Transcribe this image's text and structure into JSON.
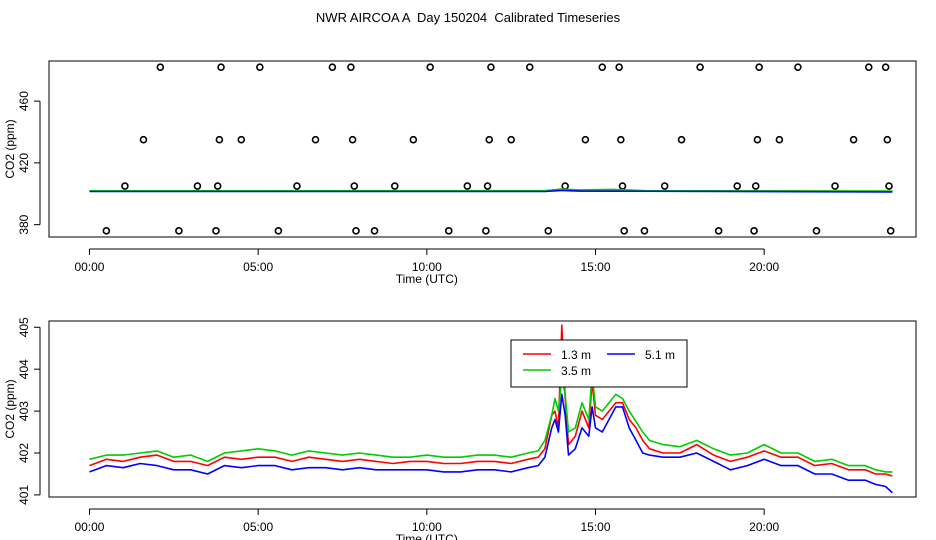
{
  "title": "NWR AIRCOA A  Day 150204  Calibrated Timeseries",
  "colors": {
    "red": "#ff0000",
    "green": "#00cc00",
    "blue": "#0000ff",
    "black": "#000000"
  },
  "chart_data": [
    {
      "type": "line",
      "title": "",
      "xlabel": "Time (UTC)",
      "ylabel": "CO2 (ppm)",
      "xlim": [
        -1.2,
        24.5
      ],
      "ylim": [
        372,
        486
      ],
      "x_ticks": [
        0,
        5,
        10,
        15,
        20
      ],
      "x_tick_labels": [
        "00:00",
        "05:00",
        "10:00",
        "15:00",
        "20:00"
      ],
      "y_ticks": [
        380,
        420,
        460
      ],
      "y_tick_labels": [
        "380",
        "420",
        "460"
      ],
      "grid": false,
      "series": [
        {
          "color": "red",
          "x": [
            0,
            13.5,
            14.0,
            14.5,
            23.8
          ],
          "y": [
            401.7,
            401.7,
            402.5,
            401.9,
            401.6
          ]
        },
        {
          "color": "green",
          "x": [
            0,
            13.5,
            14.0,
            14.5,
            15.5,
            16.5,
            23.8
          ],
          "y": [
            401.9,
            402.0,
            403.0,
            402.5,
            402.8,
            402.0,
            401.7
          ]
        },
        {
          "color": "blue",
          "x": [
            0,
            13.5,
            14.0,
            14.5,
            23.8
          ],
          "y": [
            401.5,
            401.5,
            402.2,
            401.7,
            401.2
          ]
        }
      ],
      "scatter": {
        "marker": "open-circle",
        "points": [
          [
            0.5,
            376
          ],
          [
            1.05,
            405
          ],
          [
            1.6,
            435
          ],
          [
            2.1,
            482
          ],
          [
            2.65,
            376
          ],
          [
            3.2,
            405
          ],
          [
            3.75,
            376
          ],
          [
            3.8,
            405
          ],
          [
            3.85,
            435
          ],
          [
            3.9,
            482
          ],
          [
            4.5,
            435
          ],
          [
            5.05,
            482
          ],
          [
            5.6,
            376
          ],
          [
            6.15,
            405
          ],
          [
            6.7,
            435
          ],
          [
            7.2,
            482
          ],
          [
            7.75,
            482
          ],
          [
            7.8,
            435
          ],
          [
            7.85,
            405
          ],
          [
            7.9,
            376
          ],
          [
            8.45,
            376
          ],
          [
            9.05,
            405
          ],
          [
            9.6,
            435
          ],
          [
            10.1,
            482
          ],
          [
            10.65,
            376
          ],
          [
            11.2,
            405
          ],
          [
            11.75,
            376
          ],
          [
            11.8,
            405
          ],
          [
            11.85,
            435
          ],
          [
            11.9,
            482
          ],
          [
            12.5,
            435
          ],
          [
            13.05,
            482
          ],
          [
            13.6,
            376
          ],
          [
            14.1,
            405
          ],
          [
            14.7,
            435
          ],
          [
            15.2,
            482
          ],
          [
            15.7,
            482
          ],
          [
            15.75,
            435
          ],
          [
            15.8,
            405
          ],
          [
            15.85,
            376
          ],
          [
            16.45,
            376
          ],
          [
            17.05,
            405
          ],
          [
            17.55,
            435
          ],
          [
            18.1,
            482
          ],
          [
            18.65,
            376
          ],
          [
            19.2,
            405
          ],
          [
            19.7,
            376
          ],
          [
            19.75,
            405
          ],
          [
            19.8,
            435
          ],
          [
            19.85,
            482
          ],
          [
            20.45,
            435
          ],
          [
            21.0,
            482
          ],
          [
            21.55,
            376
          ],
          [
            22.1,
            405
          ],
          [
            22.65,
            435
          ],
          [
            23.1,
            482
          ],
          [
            23.6,
            482
          ],
          [
            23.65,
            435
          ],
          [
            23.7,
            405
          ],
          [
            23.75,
            376
          ]
        ]
      }
    },
    {
      "type": "line",
      "title": "",
      "xlabel": "Time (UTC)",
      "ylabel": "CO2 (ppm)",
      "xlim": [
        -1.2,
        24.5
      ],
      "ylim": [
        400.95,
        405.15
      ],
      "x_ticks": [
        0,
        5,
        10,
        15,
        20
      ],
      "x_tick_labels": [
        "00:00",
        "05:00",
        "10:00",
        "15:00",
        "20:00"
      ],
      "y_ticks": [
        401,
        402,
        403,
        404,
        405
      ],
      "y_tick_labels": [
        "401",
        "402",
        "403",
        "404",
        "405"
      ],
      "grid": false,
      "legend": {
        "placement": "top-center",
        "entries": [
          {
            "name": "1.3 m",
            "color": "red"
          },
          {
            "name": "3.5 m",
            "color": "green"
          },
          {
            "name": "5.1 m",
            "color": "blue"
          }
        ]
      },
      "series": [
        {
          "name": "1.3 m",
          "color": "red",
          "x": [
            0,
            0.5,
            1.0,
            1.5,
            2.0,
            2.5,
            3.0,
            3.5,
            4.0,
            4.5,
            5.0,
            5.5,
            6.0,
            6.5,
            7.0,
            7.5,
            8.0,
            8.5,
            9.0,
            9.5,
            10.0,
            10.5,
            11.0,
            11.5,
            12.0,
            12.5,
            13.0,
            13.3,
            13.5,
            13.7,
            13.8,
            13.9,
            14.0,
            14.1,
            14.2,
            14.4,
            14.6,
            14.8,
            14.9,
            15.0,
            15.2,
            15.4,
            15.6,
            15.8,
            16.0,
            16.2,
            16.4,
            16.6,
            17.0,
            17.5,
            18.0,
            18.5,
            19.0,
            19.5,
            20.0,
            20.5,
            21.0,
            21.5,
            22.0,
            22.5,
            23.0,
            23.3,
            23.6,
            23.8
          ],
          "y": [
            401.7,
            401.85,
            401.8,
            401.9,
            401.95,
            401.8,
            401.8,
            401.7,
            401.9,
            401.85,
            401.9,
            401.9,
            401.8,
            401.9,
            401.85,
            401.8,
            401.85,
            401.8,
            401.75,
            401.8,
            401.8,
            401.75,
            401.75,
            401.8,
            401.8,
            401.75,
            401.85,
            401.9,
            402.1,
            402.9,
            403.0,
            402.6,
            405.05,
            403.3,
            402.2,
            402.4,
            403.0,
            402.6,
            403.7,
            402.9,
            402.8,
            403.0,
            403.2,
            403.2,
            402.8,
            402.6,
            402.3,
            402.1,
            402.0,
            402.0,
            402.2,
            401.95,
            401.8,
            401.9,
            402.05,
            401.9,
            401.9,
            401.7,
            401.75,
            401.6,
            401.6,
            401.5,
            401.5,
            401.45
          ]
        },
        {
          "name": "3.5 m",
          "color": "green",
          "x": [
            0,
            0.5,
            1.0,
            1.5,
            2.0,
            2.5,
            3.0,
            3.5,
            4.0,
            4.5,
            5.0,
            5.5,
            6.0,
            6.5,
            7.0,
            7.5,
            8.0,
            8.5,
            9.0,
            9.5,
            10.0,
            10.5,
            11.0,
            11.5,
            12.0,
            12.5,
            13.0,
            13.3,
            13.5,
            13.7,
            13.8,
            13.9,
            14.0,
            14.1,
            14.2,
            14.4,
            14.6,
            14.8,
            14.9,
            15.0,
            15.2,
            15.4,
            15.6,
            15.8,
            16.0,
            16.2,
            16.4,
            16.6,
            17.0,
            17.5,
            18.0,
            18.5,
            19.0,
            19.5,
            20.0,
            20.5,
            21.0,
            21.5,
            22.0,
            22.5,
            23.0,
            23.3,
            23.6,
            23.8
          ],
          "y": [
            401.85,
            401.95,
            401.95,
            402.0,
            402.05,
            401.9,
            401.95,
            401.8,
            402.0,
            402.05,
            402.1,
            402.05,
            401.95,
            402.05,
            402.0,
            401.95,
            402.0,
            401.95,
            401.9,
            401.9,
            401.95,
            401.9,
            401.9,
            401.95,
            401.95,
            401.9,
            402.0,
            402.05,
            402.3,
            402.9,
            403.3,
            403.0,
            403.8,
            403.4,
            402.5,
            402.6,
            403.2,
            402.8,
            403.9,
            403.1,
            403.0,
            403.2,
            403.4,
            403.3,
            403.0,
            402.75,
            402.5,
            402.3,
            402.2,
            402.15,
            402.3,
            402.1,
            401.95,
            402.0,
            402.2,
            402.0,
            402.0,
            401.8,
            401.85,
            401.7,
            401.7,
            401.6,
            401.55,
            401.55
          ]
        },
        {
          "name": "5.1 m",
          "color": "blue",
          "x": [
            0,
            0.5,
            1.0,
            1.5,
            2.0,
            2.5,
            3.0,
            3.5,
            4.0,
            4.5,
            5.0,
            5.5,
            6.0,
            6.5,
            7.0,
            7.5,
            8.0,
            8.5,
            9.0,
            9.5,
            10.0,
            10.5,
            11.0,
            11.5,
            12.0,
            12.5,
            13.0,
            13.3,
            13.5,
            13.7,
            13.8,
            13.9,
            14.0,
            14.1,
            14.2,
            14.4,
            14.6,
            14.8,
            14.9,
            15.0,
            15.2,
            15.4,
            15.6,
            15.8,
            16.0,
            16.2,
            16.4,
            16.6,
            17.0,
            17.5,
            18.0,
            18.5,
            19.0,
            19.5,
            20.0,
            20.5,
            21.0,
            21.5,
            22.0,
            22.5,
            23.0,
            23.3,
            23.6,
            23.8
          ],
          "y": [
            401.55,
            401.7,
            401.65,
            401.75,
            401.7,
            401.6,
            401.6,
            401.5,
            401.7,
            401.65,
            401.7,
            401.7,
            401.6,
            401.65,
            401.65,
            401.6,
            401.65,
            401.6,
            401.6,
            401.6,
            401.6,
            401.55,
            401.55,
            401.6,
            401.6,
            401.55,
            401.65,
            401.7,
            401.9,
            402.6,
            402.8,
            402.5,
            403.4,
            402.9,
            401.95,
            402.1,
            402.6,
            402.4,
            403.1,
            402.6,
            402.5,
            402.8,
            403.1,
            403.1,
            402.6,
            402.3,
            402.0,
            401.95,
            401.9,
            401.9,
            402.0,
            401.8,
            401.6,
            401.7,
            401.85,
            401.7,
            401.7,
            401.5,
            401.5,
            401.35,
            401.35,
            401.25,
            401.2,
            401.05
          ]
        }
      ]
    }
  ]
}
